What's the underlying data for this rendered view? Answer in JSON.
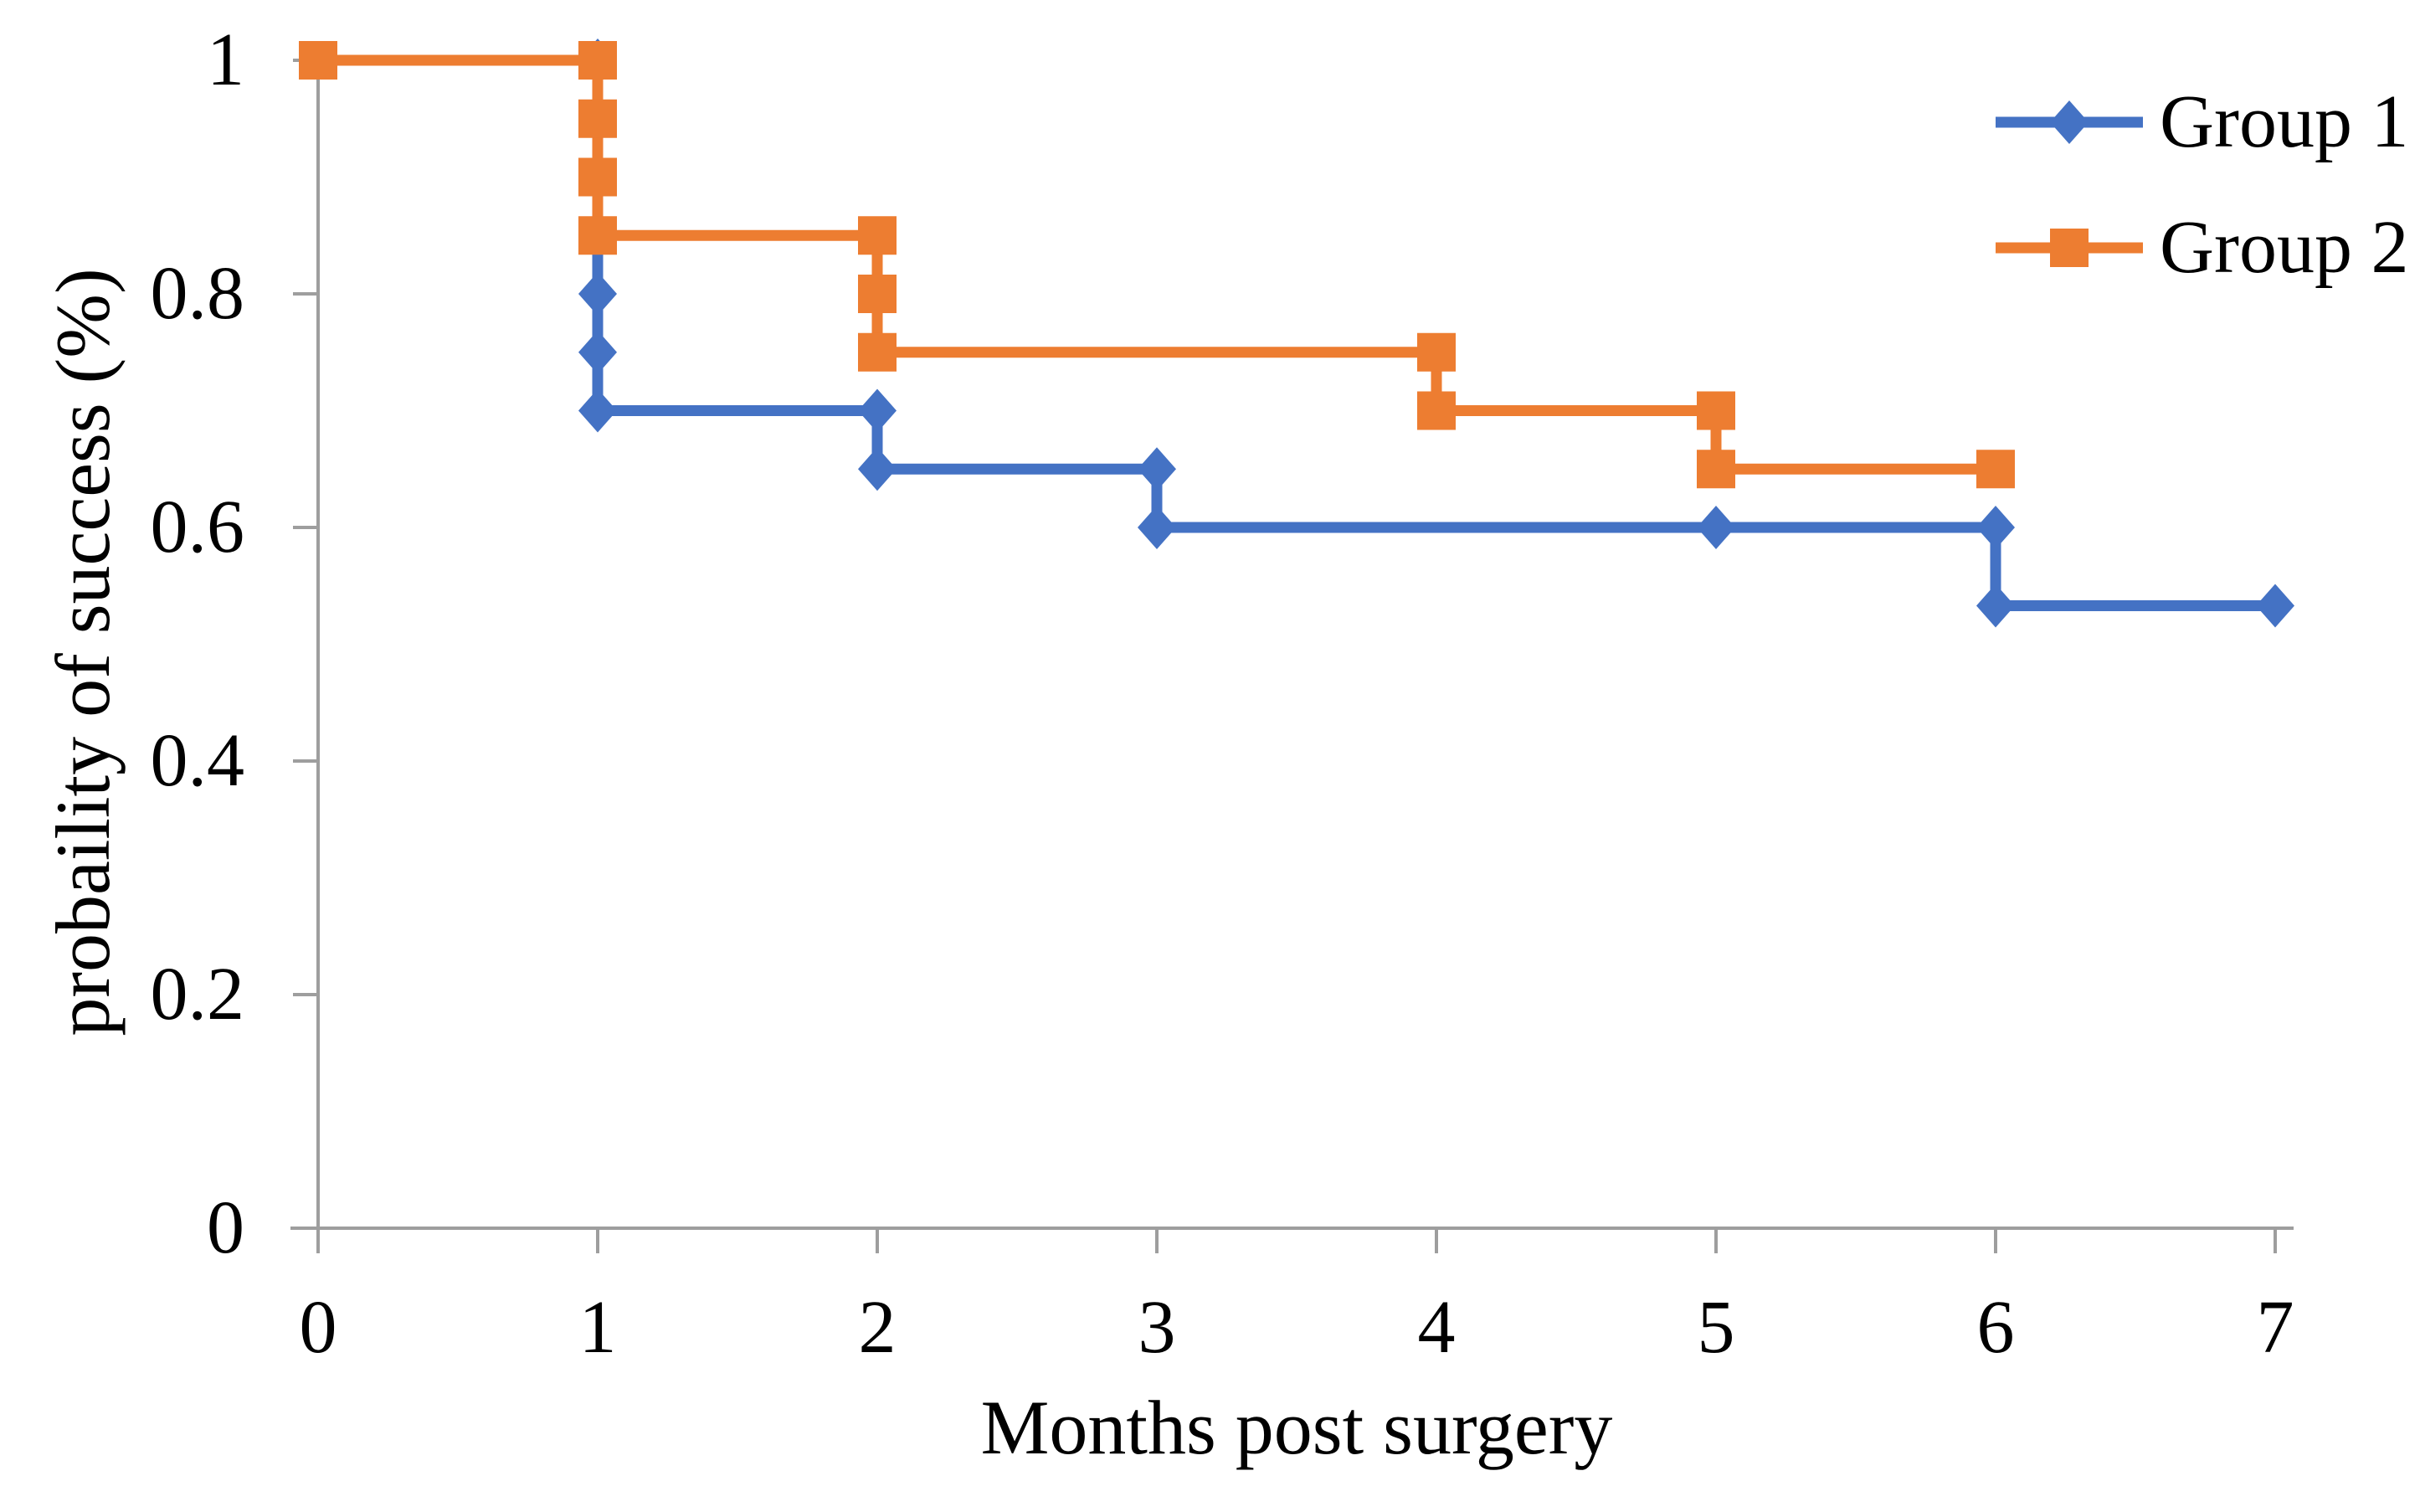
{
  "figure": {
    "background": "#ffffff"
  },
  "chart_data": {
    "type": "line",
    "subtype": "step_survival_curve",
    "title": "",
    "xlabel": "Months post surgery",
    "ylabel": "probaility of success (%)",
    "xlim": [
      0,
      7
    ],
    "ylim": [
      0,
      1
    ],
    "xtick_values": [
      0,
      1,
      2,
      3,
      4,
      5,
      6,
      7
    ],
    "xtick_labels": [
      "0",
      "1",
      "2",
      "3",
      "4",
      "5",
      "6",
      "7"
    ],
    "ytick_values": [
      0,
      0.2,
      0.4,
      0.6,
      0.8,
      1
    ],
    "ytick_labels": [
      "0",
      "0.2",
      "0.4",
      "0.6",
      "0.8",
      "1"
    ],
    "grid": false,
    "legend_position": "top-right",
    "axis_color": "#9E9E9E",
    "text_color": "#000000",
    "series": [
      {
        "name": "Group 1",
        "color": "#4472C4",
        "marker": "diamond",
        "points": [
          [
            1,
            1
          ],
          [
            1,
            0.8
          ],
          [
            1,
            0.75
          ],
          [
            1,
            0.7
          ],
          [
            2,
            0.7
          ],
          [
            2,
            0.65
          ],
          [
            3,
            0.65
          ],
          [
            3,
            0.6
          ],
          [
            5,
            0.6
          ],
          [
            6,
            0.6
          ],
          [
            6,
            0.533
          ],
          [
            7,
            0.533
          ]
        ]
      },
      {
        "name": "Group 2",
        "color": "#ED7D31",
        "marker": "square",
        "points": [
          [
            0,
            1
          ],
          [
            1,
            1
          ],
          [
            1,
            0.95
          ],
          [
            1,
            0.9
          ],
          [
            1,
            0.85
          ],
          [
            2,
            0.85
          ],
          [
            2,
            0.8
          ],
          [
            2,
            0.75
          ],
          [
            4,
            0.75
          ],
          [
            4,
            0.7
          ],
          [
            5,
            0.7
          ],
          [
            5,
            0.65
          ],
          [
            6,
            0.65
          ]
        ]
      }
    ]
  }
}
